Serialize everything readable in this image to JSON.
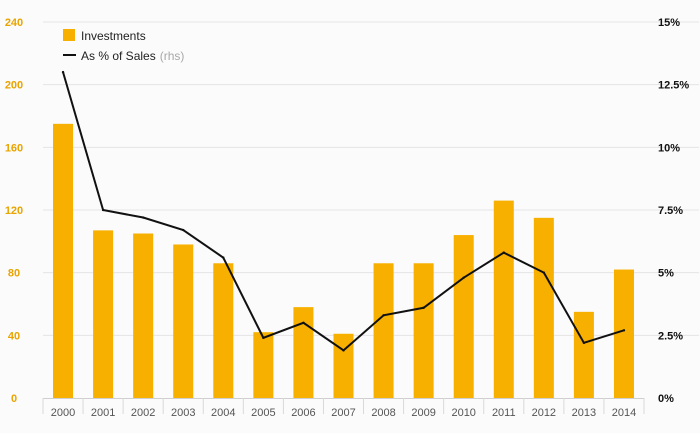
{
  "colors": {
    "bar": "#f7b000",
    "line": "#111111",
    "grid": "#e4e4e4",
    "left_axis_text": "#e8a400",
    "right_axis_text": "#111111",
    "x_axis_text": "#555555",
    "legend_muted": "#a8a8a8"
  },
  "legend": {
    "bars_label": "Investments",
    "line_label": "As % of Sales",
    "line_suffix": "(rhs)"
  },
  "chart_data": {
    "type": "bar",
    "title": "",
    "xlabel": "",
    "ylabel": "",
    "categories": [
      "2000",
      "2001",
      "2002",
      "2003",
      "2004",
      "2005",
      "2006",
      "2007",
      "2008",
      "2009",
      "2010",
      "2011",
      "2012",
      "2013",
      "2014"
    ],
    "series": [
      {
        "name": "Investments",
        "type": "bar",
        "axis": "left",
        "values": [
          175,
          107,
          105,
          98,
          86,
          42,
          58,
          41,
          86,
          86,
          104,
          126,
          115,
          55,
          82
        ]
      },
      {
        "name": "As % of Sales (rhs)",
        "type": "line",
        "axis": "right",
        "values": [
          13.0,
          7.5,
          7.2,
          6.7,
          5.6,
          2.4,
          3.0,
          1.9,
          3.3,
          3.6,
          4.8,
          5.8,
          5.0,
          2.2,
          2.7
        ]
      }
    ],
    "left_axis": {
      "ylim": [
        0,
        240
      ],
      "ticks": [
        0,
        40,
        80,
        120,
        160,
        200,
        240
      ],
      "tick_labels": [
        "0",
        "40",
        "80",
        "120",
        "160",
        "200",
        "240"
      ]
    },
    "right_axis": {
      "ylim": [
        0,
        15
      ],
      "ticks": [
        0,
        2.5,
        5,
        7.5,
        10,
        12.5,
        15
      ],
      "tick_labels": [
        "0%",
        "2.5%",
        "5%",
        "7.5%",
        "10%",
        "12.5%",
        "15%"
      ]
    },
    "grid": true,
    "legend_position": "top-left"
  }
}
